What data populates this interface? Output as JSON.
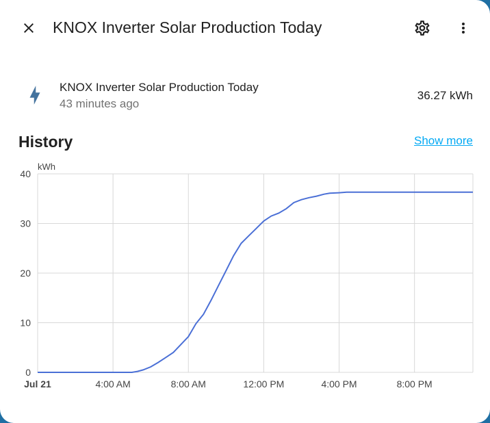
{
  "header": {
    "title": "KNOX Inverter Solar Production Today",
    "close_icon": "close-icon",
    "settings_icon": "gear-icon",
    "more_icon": "more-vert-icon"
  },
  "entity": {
    "icon": "flash-icon",
    "icon_color": "#44739e",
    "name": "KNOX Inverter Solar Production Today",
    "last_changed": "43 minutes ago",
    "state": "36.27 kWh"
  },
  "history": {
    "heading": "History",
    "show_more": "Show more",
    "link_color": "#03a9f4"
  },
  "chart_data": {
    "type": "line",
    "title": "",
    "ylabel": "kWh",
    "xlabel": "",
    "ylim": [
      0,
      40
    ],
    "yticks": [
      0,
      10,
      20,
      30,
      40
    ],
    "xlim": [
      0,
      23.1
    ],
    "xticks": [
      {
        "value": 0,
        "label": "Jul 21",
        "bold": true
      },
      {
        "value": 4,
        "label": "4:00 AM",
        "bold": false
      },
      {
        "value": 8,
        "label": "8:00 AM",
        "bold": false
      },
      {
        "value": 12,
        "label": "12:00 PM",
        "bold": false
      },
      {
        "value": 16,
        "label": "4:00 PM",
        "bold": false
      },
      {
        "value": 20,
        "label": "8:00 PM",
        "bold": false
      }
    ],
    "grid": true,
    "line_color": "#4a6fd6",
    "series": [
      {
        "x": [
          0,
          5.0,
          5.3,
          5.6,
          6.0,
          6.4,
          6.8,
          7.2,
          7.6,
          8.0,
          8.4,
          8.8,
          9.2,
          9.6,
          10.0,
          10.4,
          10.8,
          11.2,
          11.6,
          12.0,
          12.4,
          12.8,
          13.2,
          13.6,
          14.0,
          14.4,
          14.8,
          15.2,
          15.5,
          16.0,
          16.4,
          16.8,
          17.2,
          17.6,
          18.0,
          18.5,
          19.0,
          23.1
        ],
        "y": [
          0,
          0,
          0.2,
          0.5,
          1.1,
          2.0,
          3.0,
          4.0,
          5.6,
          7.2,
          9.8,
          11.7,
          14.5,
          17.5,
          20.5,
          23.5,
          26.0,
          27.5,
          29.0,
          30.5,
          31.5,
          32.1,
          33.0,
          34.2,
          34.8,
          35.2,
          35.5,
          35.9,
          36.1,
          36.2,
          36.3,
          36.3,
          36.3,
          36.3,
          36.3,
          36.3,
          36.3,
          36.3
        ]
      }
    ]
  }
}
